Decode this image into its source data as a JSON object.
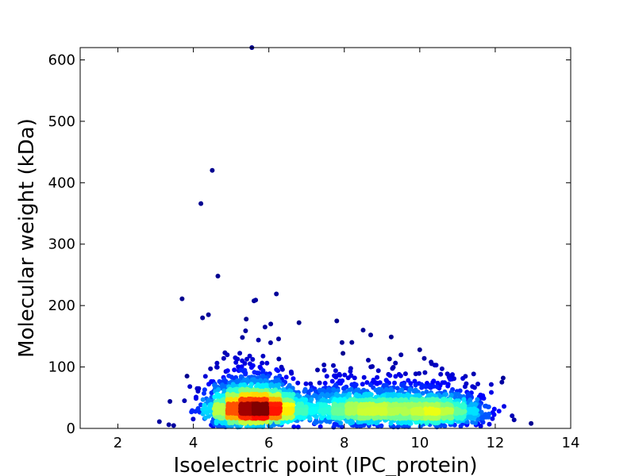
{
  "chart_data": {
    "type": "scatter",
    "title": "",
    "xlabel": "Isoelectric point (IPC_protein)",
    "ylabel": "Molecular weight (kDa)",
    "xlim": [
      1,
      14
    ],
    "ylim": [
      0,
      620
    ],
    "x_ticks": [
      2,
      4,
      6,
      8,
      10,
      12,
      14
    ],
    "y_ticks": [
      0,
      100,
      200,
      300,
      400,
      500,
      600
    ],
    "grid": false,
    "legend": "none",
    "colormap": "jet (point density)",
    "colors": {
      "low_density": "#00008f",
      "mid_density": "#00ff80",
      "high_density": "#8f0000",
      "axes": "#000000"
    },
    "clusters": [
      {
        "center_x": 5.6,
        "center_y": 32,
        "spread_x": 0.55,
        "spread_y": 14,
        "count": 2600
      },
      {
        "center_x": 8.7,
        "center_y": 30,
        "spread_x": 1.1,
        "spread_y": 13,
        "count": 1700
      },
      {
        "center_x": 10.6,
        "center_y": 26,
        "spread_x": 0.6,
        "spread_y": 12,
        "count": 700
      }
    ],
    "outliers": [
      {
        "x": 5.55,
        "y": 620
      },
      {
        "x": 4.5,
        "y": 420
      },
      {
        "x": 4.2,
        "y": 366
      },
      {
        "x": 4.65,
        "y": 248
      },
      {
        "x": 6.2,
        "y": 219
      },
      {
        "x": 3.7,
        "y": 211
      },
      {
        "x": 5.65,
        "y": 209
      },
      {
        "x": 4.4,
        "y": 185
      },
      {
        "x": 5.4,
        "y": 178
      },
      {
        "x": 7.8,
        "y": 175
      },
      {
        "x": 6.8,
        "y": 172
      },
      {
        "x": 6.05,
        "y": 170
      },
      {
        "x": 5.9,
        "y": 165
      },
      {
        "x": 8.5,
        "y": 160
      },
      {
        "x": 8.7,
        "y": 152
      },
      {
        "x": 5.3,
        "y": 148
      },
      {
        "x": 10.0,
        "y": 128
      },
      {
        "x": 8.2,
        "y": 140
      },
      {
        "x": 9.2,
        "y": 113
      },
      {
        "x": 10.3,
        "y": 108
      },
      {
        "x": 4.1,
        "y": 65
      },
      {
        "x": 3.1,
        "y": 11
      },
      {
        "x": 3.35,
        "y": 6
      },
      {
        "x": 12.5,
        "y": 14
      },
      {
        "x": 12.95,
        "y": 8
      },
      {
        "x": 12.1,
        "y": 28
      },
      {
        "x": 11.2,
        "y": 68
      }
    ]
  }
}
